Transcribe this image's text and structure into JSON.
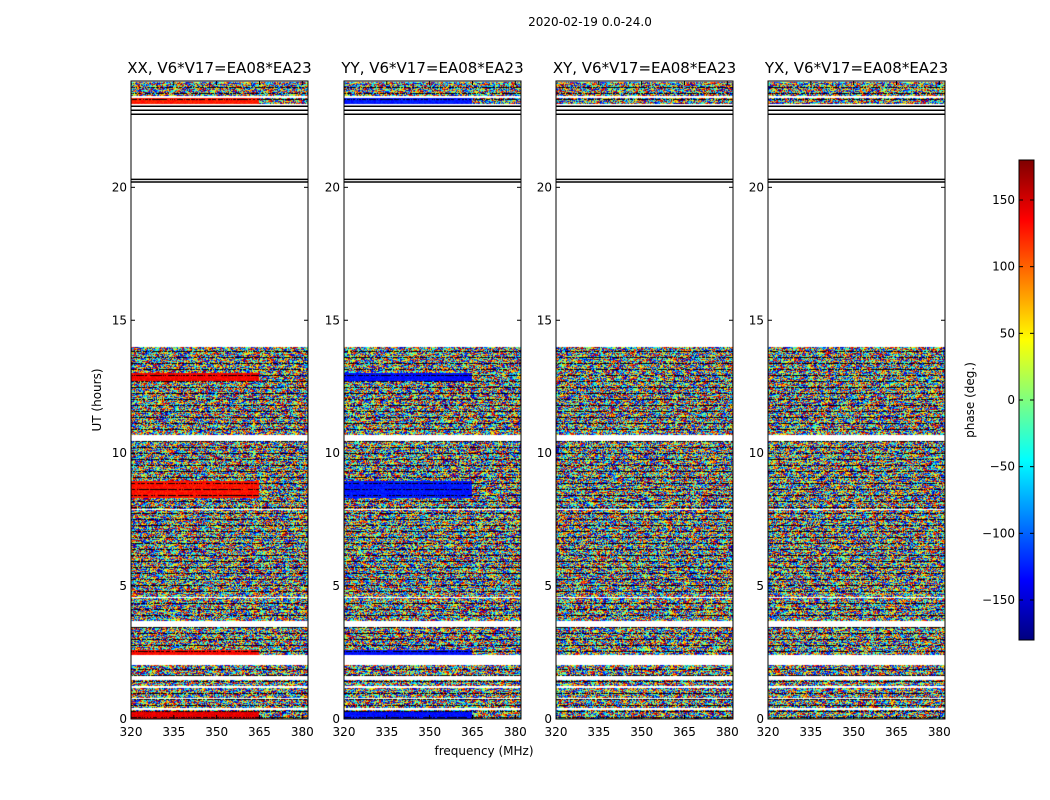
{
  "chart_data": {
    "type": "heatmap",
    "suptitle": "2020-02-19 0.0-24.0",
    "xlabel": "frequency (MHz)",
    "ylabel": "UT (hours)",
    "xlim": [
      320,
      382
    ],
    "ylim": [
      0,
      24
    ],
    "x_ticks": [
      320,
      335,
      350,
      365,
      380
    ],
    "y_ticks": [
      0,
      5,
      10,
      15,
      20
    ],
    "colorbar": {
      "label": "phase (deg.)",
      "range": [
        -180,
        180
      ],
      "ticks": [
        150,
        100,
        50,
        0,
        -50,
        -100,
        -150
      ],
      "tick_labels": [
        "150",
        "100",
        "50",
        "0",
        "−50",
        "−100",
        "−150"
      ],
      "colormap": "jet",
      "stops": [
        "#00007f",
        "#0000ff",
        "#007fff",
        "#00ffff",
        "#7fff7f",
        "#ffff00",
        "#ff7f00",
        "#ff0000",
        "#7f0000"
      ]
    },
    "data_bands_hours": [
      [
        0.0,
        0.35
      ],
      [
        0.4,
        0.75
      ],
      [
        0.8,
        1.15
      ],
      [
        1.25,
        1.45
      ],
      [
        1.6,
        2.05
      ],
      [
        2.4,
        3.45
      ],
      [
        3.7,
        4.55
      ],
      [
        4.6,
        7.85
      ],
      [
        7.9,
        10.45
      ],
      [
        10.7,
        14.0
      ],
      [
        23.15,
        23.35
      ],
      [
        23.45,
        23.95
      ]
    ],
    "flag_lines_hours": [
      20.2,
      20.3,
      22.75,
      22.9,
      23.05
    ],
    "panels": [
      {
        "title": "XX, V6*V17=EA08*EA23",
        "pol": "XX",
        "coherent_rows": [
          {
            "t0": 0.0,
            "t1": 0.3,
            "hue": 0.9
          },
          {
            "t0": 2.35,
            "t1": 2.6,
            "hue": 0.87
          },
          {
            "t0": 8.3,
            "t1": 8.95,
            "hue": 0.86
          },
          {
            "t0": 12.7,
            "t1": 13.0,
            "hue": 0.88
          },
          {
            "t0": 23.15,
            "t1": 23.4,
            "hue": 0.85
          }
        ]
      },
      {
        "title": "YY, V6*V17=EA08*EA23",
        "pol": "YY",
        "coherent_rows": [
          {
            "t0": 0.0,
            "t1": 0.3,
            "hue": 0.14
          },
          {
            "t0": 2.35,
            "t1": 2.6,
            "hue": 0.14
          },
          {
            "t0": 8.3,
            "t1": 8.95,
            "hue": 0.15
          },
          {
            "t0": 12.7,
            "t1": 13.0,
            "hue": 0.14
          },
          {
            "t0": 23.15,
            "t1": 23.4,
            "hue": 0.15
          }
        ]
      },
      {
        "title": "XY, V6*V17=EA08*EA23",
        "pol": "XY",
        "coherent_rows": []
      },
      {
        "title": "YX, V6*V17=EA08*EA23",
        "pol": "YX",
        "coherent_rows": []
      }
    ]
  }
}
